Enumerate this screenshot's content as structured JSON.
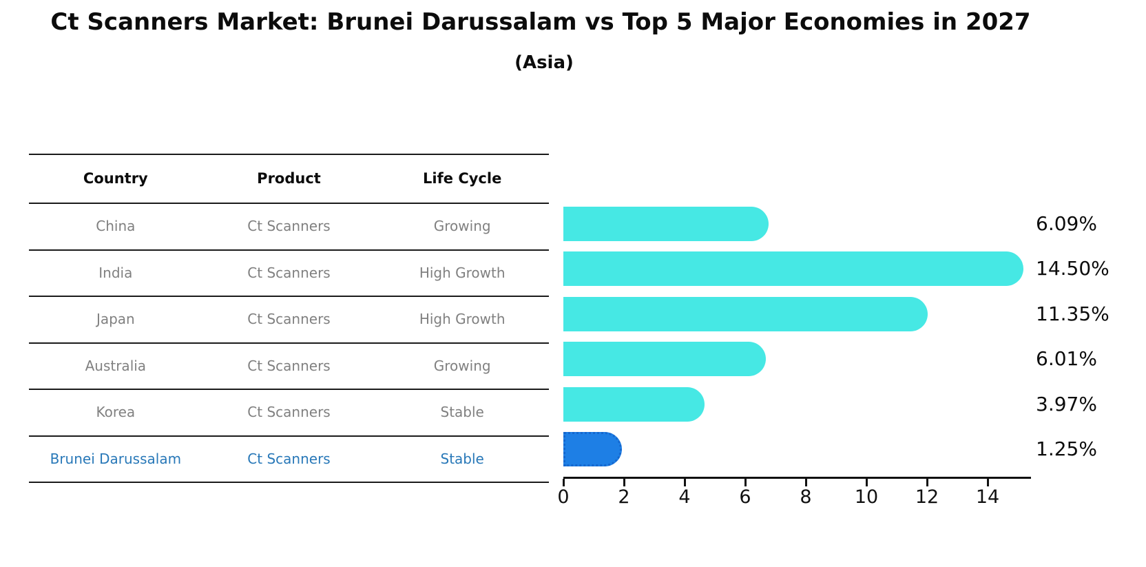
{
  "title": "Ct Scanners Market: Brunei Darussalam vs Top 5 Major Economies in 2027",
  "subtitle": "(Asia)",
  "table": {
    "headers": [
      "Country",
      "Product",
      "Life Cycle"
    ],
    "rows": [
      {
        "country": "China",
        "product": "Ct Scanners",
        "life_cycle": "Growing",
        "highlight": false
      },
      {
        "country": "India",
        "product": "Ct Scanners",
        "life_cycle": "High Growth",
        "highlight": false
      },
      {
        "country": "Japan",
        "product": "Ct Scanners",
        "life_cycle": "High Growth",
        "highlight": false
      },
      {
        "country": "Australia",
        "product": "Ct Scanners",
        "life_cycle": "Growing",
        "highlight": false
      },
      {
        "country": "Korea",
        "product": "Ct Scanners",
        "life_cycle": "Stable",
        "highlight": false
      },
      {
        "country": "Brunei Darussalam",
        "product": "Ct Scanners",
        "life_cycle": "Stable",
        "highlight": true
      }
    ]
  },
  "chart_data": {
    "type": "bar",
    "orientation": "horizontal",
    "title": "Ct Scanners Market: Brunei Darussalam vs Top 5 Major Economies in 2027 (Asia)",
    "categories": [
      "China",
      "India",
      "Japan",
      "Australia",
      "Korea",
      "Brunei Darussalam"
    ],
    "values": [
      6.09,
      14.5,
      11.35,
      6.01,
      3.97,
      1.25
    ],
    "value_labels": [
      "6.09%",
      "14.50%",
      "11.35%",
      "6.01%",
      "3.97%",
      "1.25%"
    ],
    "x_ticks": [
      0,
      2,
      4,
      6,
      8,
      10,
      12,
      14
    ],
    "xlim": [
      0,
      15.4
    ],
    "grid": false,
    "legend": "none",
    "bar_color": "#46E8E4",
    "highlight_bar_color": "#1E7FE5",
    "highlight_index": 5
  },
  "colors": {
    "bar_cyan": "#46E8E4",
    "bar_blue": "#1E7FE5",
    "highlight_text_blue": "#2878B8",
    "table_text_gray": "#808080",
    "line_black": "#1a1a1a"
  }
}
